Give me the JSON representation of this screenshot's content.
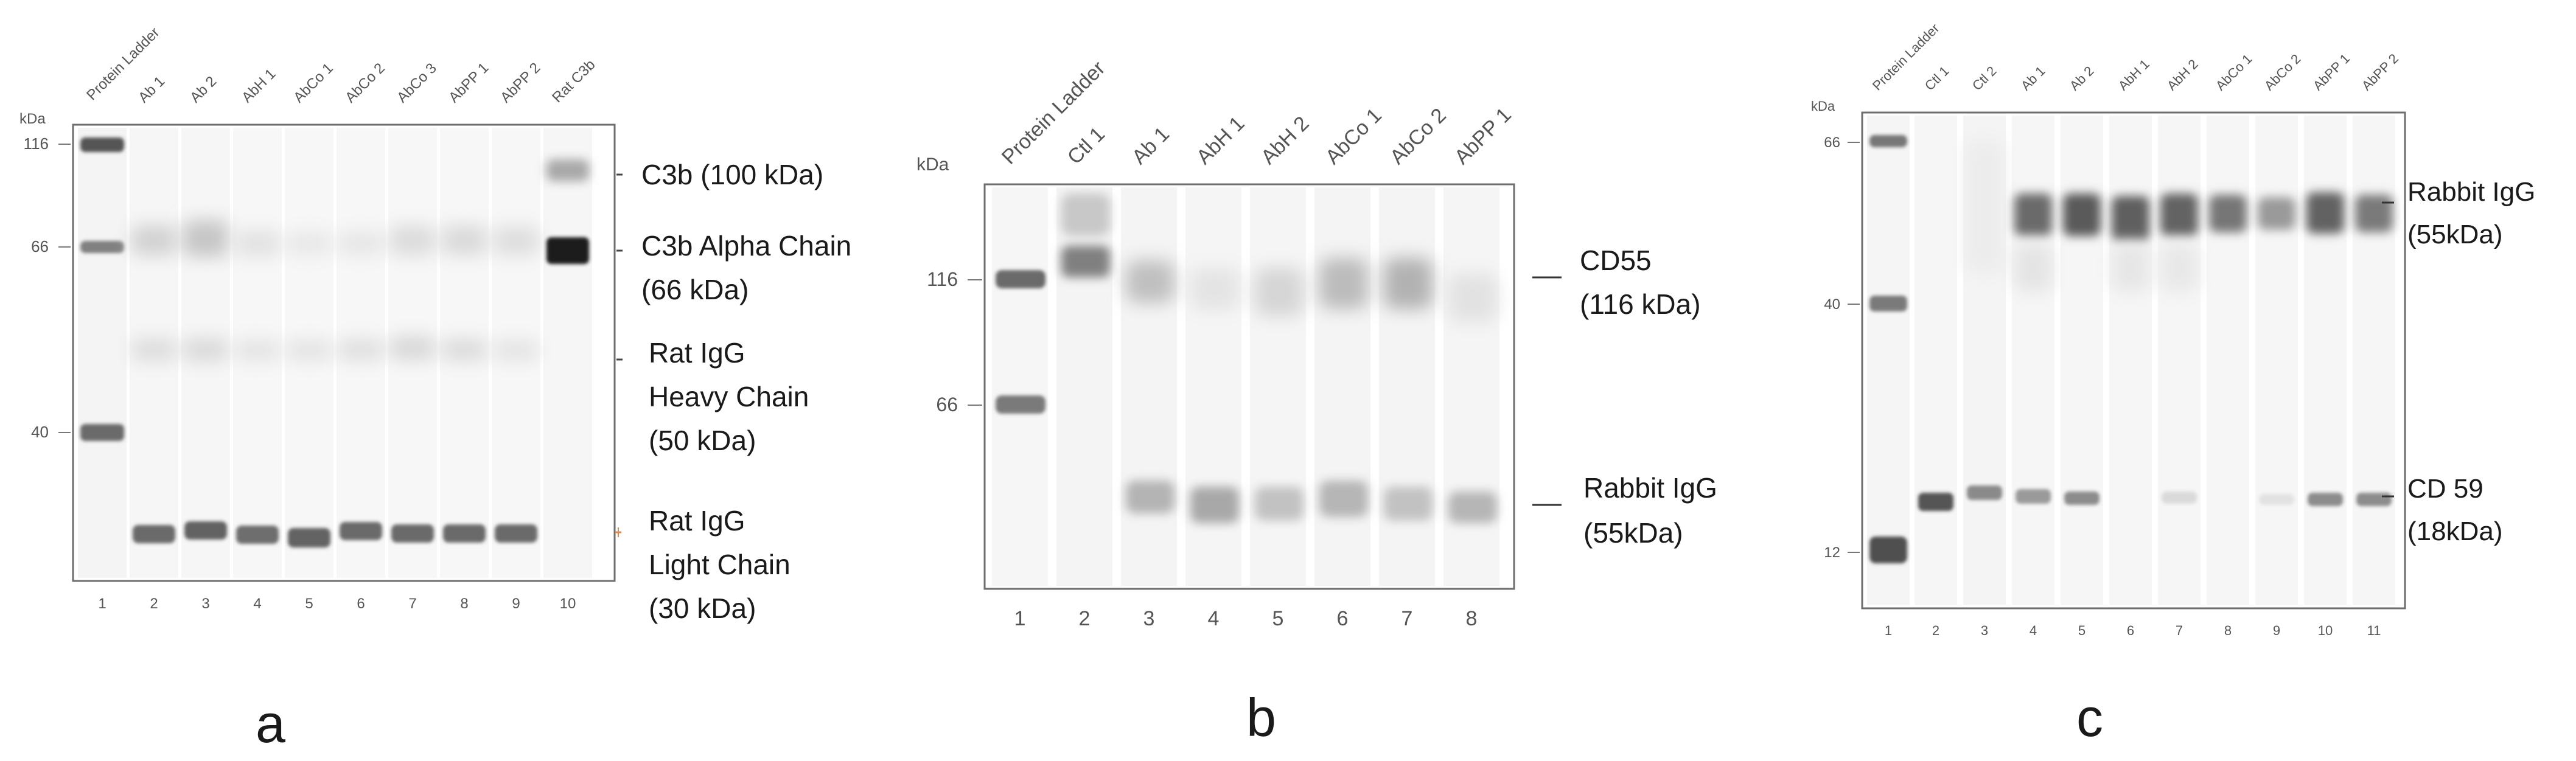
{
  "panels": [
    {
      "id": "a",
      "panel_label": "a",
      "kda_label": "kDa",
      "lane_names": [
        "Protein Ladder",
        "Ab 1",
        "Ab 2",
        "AbH 1",
        "AbCo 1",
        "AbCo 2",
        "AbCo 3",
        "AbPP 1",
        "AbPP 2",
        "Rat C3b"
      ],
      "lane_numbers": [
        "1",
        "2",
        "3",
        "4",
        "5",
        "6",
        "7",
        "8",
        "9",
        "10"
      ],
      "markers": [
        {
          "text": "116",
          "kda": 116
        },
        {
          "text": "66",
          "kda": 66
        },
        {
          "text": "40",
          "kda": 40
        }
      ],
      "annotations": [
        {
          "lines": [
            "C3b (100 kDa)"
          ]
        },
        {
          "lines": [
            "C3b Alpha Chain",
            "(66 kDa)"
          ]
        },
        {
          "lines": [
            "Rat IgG",
            "Heavy Chain",
            "(50 kDa)"
          ]
        },
        {
          "lines": [
            "Rat IgG",
            "Light Chain",
            "(30 kDa)"
          ]
        }
      ]
    },
    {
      "id": "b",
      "panel_label": "b",
      "kda_label": "kDa",
      "lane_names": [
        "Protein Ladder",
        "Ctl 1",
        "Ab 1",
        "AbH 1",
        "AbH 2",
        "AbCo 1",
        "AbCo 2",
        "AbPP 1"
      ],
      "lane_numbers": [
        "1",
        "2",
        "3",
        "4",
        "5",
        "6",
        "7",
        "8"
      ],
      "markers": [
        {
          "text": "116",
          "kda": 116
        },
        {
          "text": "66",
          "kda": 66
        }
      ],
      "annotations": [
        {
          "lines": [
            "CD55",
            "(116 kDa)"
          ]
        },
        {
          "lines": [
            "Rabbit IgG",
            "(55kDa)"
          ]
        }
      ]
    },
    {
      "id": "c",
      "panel_label": "c",
      "kda_label": "kDa",
      "lane_names": [
        "Protein Ladder",
        "Ctl 1",
        "Ctl 2",
        "Ab 1",
        "Ab 2",
        "AbH 1",
        "AbH 2",
        "AbCo 1",
        "AbCo 2",
        "AbPP 1",
        "AbPP 2"
      ],
      "lane_numbers": [
        "1",
        "2",
        "3",
        "4",
        "5",
        "6",
        "7",
        "8",
        "9",
        "10",
        "11"
      ],
      "markers": [
        {
          "text": "66",
          "kda": 66
        },
        {
          "text": "40",
          "kda": 40
        },
        {
          "text": "12",
          "kda": 12
        }
      ],
      "annotations": [
        {
          "lines": [
            "Rabbit IgG",
            "(55kDa)"
          ]
        },
        {
          "lines": [
            "CD 59",
            "(18kDa)"
          ]
        }
      ]
    }
  ]
}
